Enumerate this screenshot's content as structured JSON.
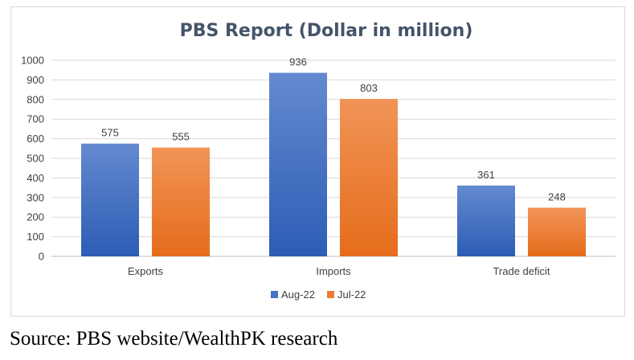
{
  "chart_data": {
    "type": "bar",
    "title": "PBS Report (Dollar in million)",
    "categories": [
      "Exports",
      "Imports",
      "Trade deficit"
    ],
    "series": [
      {
        "name": "Aug-22",
        "values": [
          575,
          936,
          361
        ],
        "color": "#4472c4"
      },
      {
        "name": "Jul-22",
        "values": [
          555,
          803,
          248
        ],
        "color": "#ed7d31"
      }
    ],
    "ylim": [
      0,
      1000
    ],
    "yticks": [
      0,
      100,
      200,
      300,
      400,
      500,
      600,
      700,
      800,
      900,
      1000
    ],
    "grid": true,
    "legend": "bottom",
    "data_labels": true
  },
  "source": "Source: PBS website/WealthPK research"
}
